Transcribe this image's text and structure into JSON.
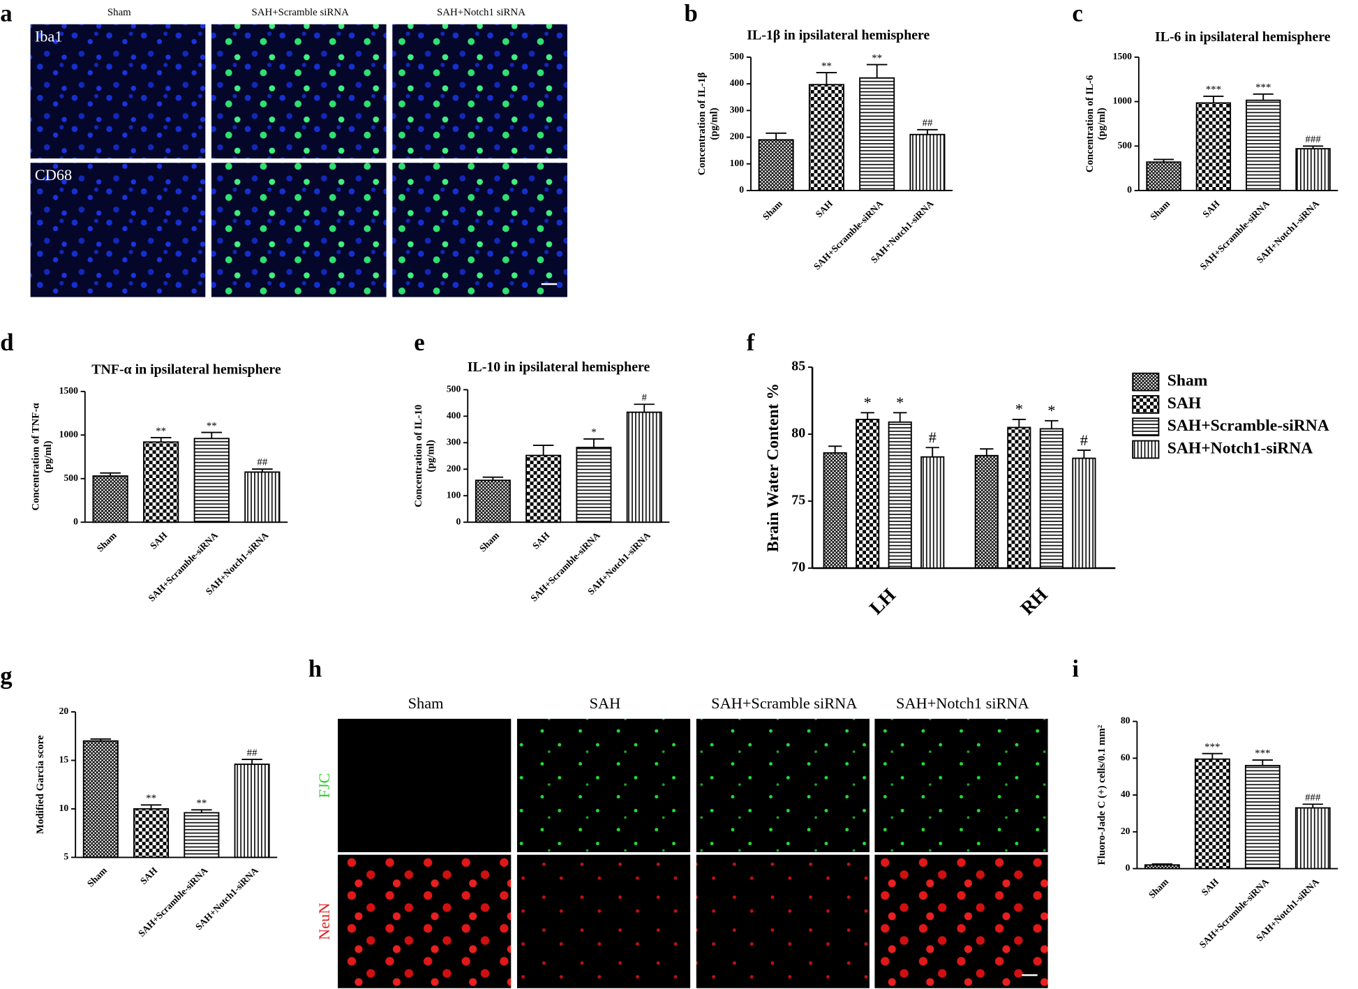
{
  "images": [
    {
      "label": "a",
      "columns": [
        "Sham",
        "SAH+Scramble siRNA",
        "SAH+Notch1 siRNA"
      ],
      "rows": [
        "Iba1",
        "CD68"
      ]
    },
    {
      "label": "h",
      "columns": [
        "Sham",
        "SAH",
        "SAH+Scramble siRNA",
        "SAH+Notch1 siRNA"
      ],
      "rows": [
        "FJC",
        "NeuN"
      ]
    }
  ],
  "chart_data": [
    {
      "type": "bar",
      "panel_label": "b",
      "title": "IL-1β  in ipsilateral hemisphere",
      "ylabel": [
        "Concentration of IL-1β",
        "(pg/ml)"
      ],
      "categories": [
        "Sham",
        "SAH",
        "SAH+Scramble-siRNA",
        "SAH+Notch1-siRNA"
      ],
      "values": [
        190,
        397,
        422,
        210
      ],
      "errors": [
        25,
        45,
        50,
        18
      ],
      "annotations": [
        null,
        "**",
        "**",
        "##"
      ],
      "ylim": [
        0,
        500
      ],
      "yticks": [
        0,
        100,
        200,
        300,
        400,
        500
      ]
    },
    {
      "type": "bar",
      "panel_label": "c",
      "title": "IL-6 in ipsilateral hemisphere",
      "ylabel": [
        "Concentration of IL-6",
        "(pg/ml)"
      ],
      "categories": [
        "Sham",
        "SAH",
        "SAH+Scramble-siRNA",
        "SAH+Notch1-siRNA"
      ],
      "values": [
        320,
        985,
        1015,
        470
      ],
      "errors": [
        30,
        75,
        70,
        30
      ],
      "annotations": [
        null,
        "***",
        "***",
        "###"
      ],
      "ylim": [
        0,
        1500
      ],
      "yticks": [
        0,
        500,
        1000,
        1500
      ]
    },
    {
      "type": "bar",
      "panel_label": "d",
      "title": "TNF-α  in ipsilateral hemisphere",
      "ylabel": [
        "Concentration of TNF-α",
        "(pg/ml)"
      ],
      "categories": [
        "Sham",
        "SAH",
        "SAH+Scramble-siRNA",
        "SAH+Notch1-siRNA"
      ],
      "values": [
        530,
        920,
        960,
        575
      ],
      "errors": [
        35,
        50,
        70,
        35
      ],
      "annotations": [
        null,
        "**",
        "**",
        "##"
      ],
      "ylim": [
        0,
        1500
      ],
      "yticks": [
        0,
        500,
        1000,
        1500
      ]
    },
    {
      "type": "bar",
      "panel_label": "e",
      "title": "IL-10 in ipsilateral hemisphere",
      "ylabel": [
        "Concentration of IL-10",
        "(pg/ml)"
      ],
      "categories": [
        "Sham",
        "SAH",
        "SAH+Scramble-siRNA",
        "SAH+Notch1-siRNA"
      ],
      "values": [
        158,
        252,
        282,
        415
      ],
      "errors": [
        12,
        38,
        32,
        30
      ],
      "annotations": [
        null,
        null,
        "*",
        "#"
      ],
      "ylim": [
        0,
        500
      ],
      "yticks": [
        0,
        100,
        200,
        300,
        400,
        500
      ]
    },
    {
      "type": "grouped-bar",
      "panel_label": "f",
      "ylabel": [
        "Brain Water Content %"
      ],
      "categories": [
        "LH",
        "RH"
      ],
      "series": [
        {
          "name": "Sham",
          "values": [
            78.6,
            78.4
          ],
          "errors": [
            0.5,
            0.5
          ],
          "annotations": [
            null,
            null
          ]
        },
        {
          "name": "SAH",
          "values": [
            81.1,
            80.5
          ],
          "errors": [
            0.5,
            0.6
          ],
          "annotations": [
            "*",
            "*"
          ]
        },
        {
          "name": "SAH+Scramble-siRNA",
          "values": [
            80.9,
            80.4
          ],
          "errors": [
            0.7,
            0.6
          ],
          "annotations": [
            "*",
            "*"
          ]
        },
        {
          "name": "SAH+Notch1-siRNA",
          "values": [
            78.3,
            78.2
          ],
          "errors": [
            0.7,
            0.6
          ],
          "annotations": [
            "#",
            "#"
          ]
        }
      ],
      "ylim": [
        70,
        85
      ],
      "yticks": [
        70,
        75,
        80,
        85
      ]
    },
    {
      "type": "bar",
      "panel_label": "g",
      "ylabel": [
        "Modified Garcia score"
      ],
      "categories": [
        "Sham",
        "SAH",
        "SAH+Scramble-siRNA",
        "SAH+Notch1-siRNA"
      ],
      "values": [
        17.0,
        10.0,
        9.6,
        14.6
      ],
      "errors": [
        0.2,
        0.4,
        0.3,
        0.5
      ],
      "annotations": [
        null,
        "**",
        "**",
        "##"
      ],
      "ylim": [
        5,
        20
      ],
      "yticks": [
        5,
        10,
        15,
        20
      ]
    },
    {
      "type": "bar",
      "panel_label": "i",
      "ylabel": [
        "Fluoro-Jade C (+) cells/0.1 mm²"
      ],
      "categories": [
        "Sham",
        "SAH",
        "SAH+Scramble-siRNA",
        "SAH+Notch1-siRNA"
      ],
      "values": [
        2,
        59.5,
        56,
        33
      ],
      "errors": [
        0.5,
        3,
        3,
        2
      ],
      "annotations": [
        null,
        "***",
        "***",
        "###"
      ],
      "ylim": [
        0,
        80
      ],
      "yticks": [
        0,
        20,
        40,
        60,
        80
      ]
    }
  ]
}
